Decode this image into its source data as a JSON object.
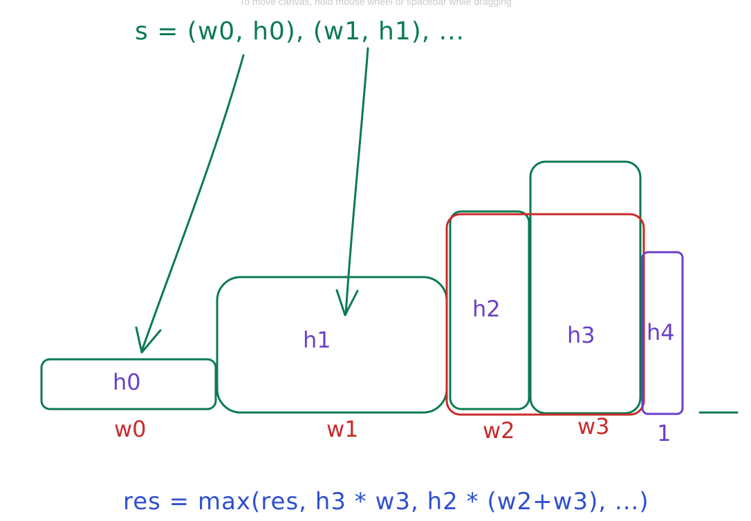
{
  "canvas_hint": "To move canvas, hold mouse wheel or spacebar while dragging",
  "colors": {
    "green": "#0b7a50",
    "purple": "#6a3fc9",
    "red": "#c92a2a",
    "blue": "#2f4fcf"
  },
  "formula_top": "s = (w0, h0), (w1, h1), ...",
  "formula_bottom": "res = max(res, h3 * w3, h2 * (w2+w3), ...)",
  "bars": [
    {
      "height_label": "h0",
      "width_label": "w0"
    },
    {
      "height_label": "h1",
      "width_label": "w1"
    },
    {
      "height_label": "h2",
      "width_label": "w2"
    },
    {
      "height_label": "h3",
      "width_label": "w3"
    },
    {
      "height_label": "h4",
      "width_label": "1"
    }
  ]
}
